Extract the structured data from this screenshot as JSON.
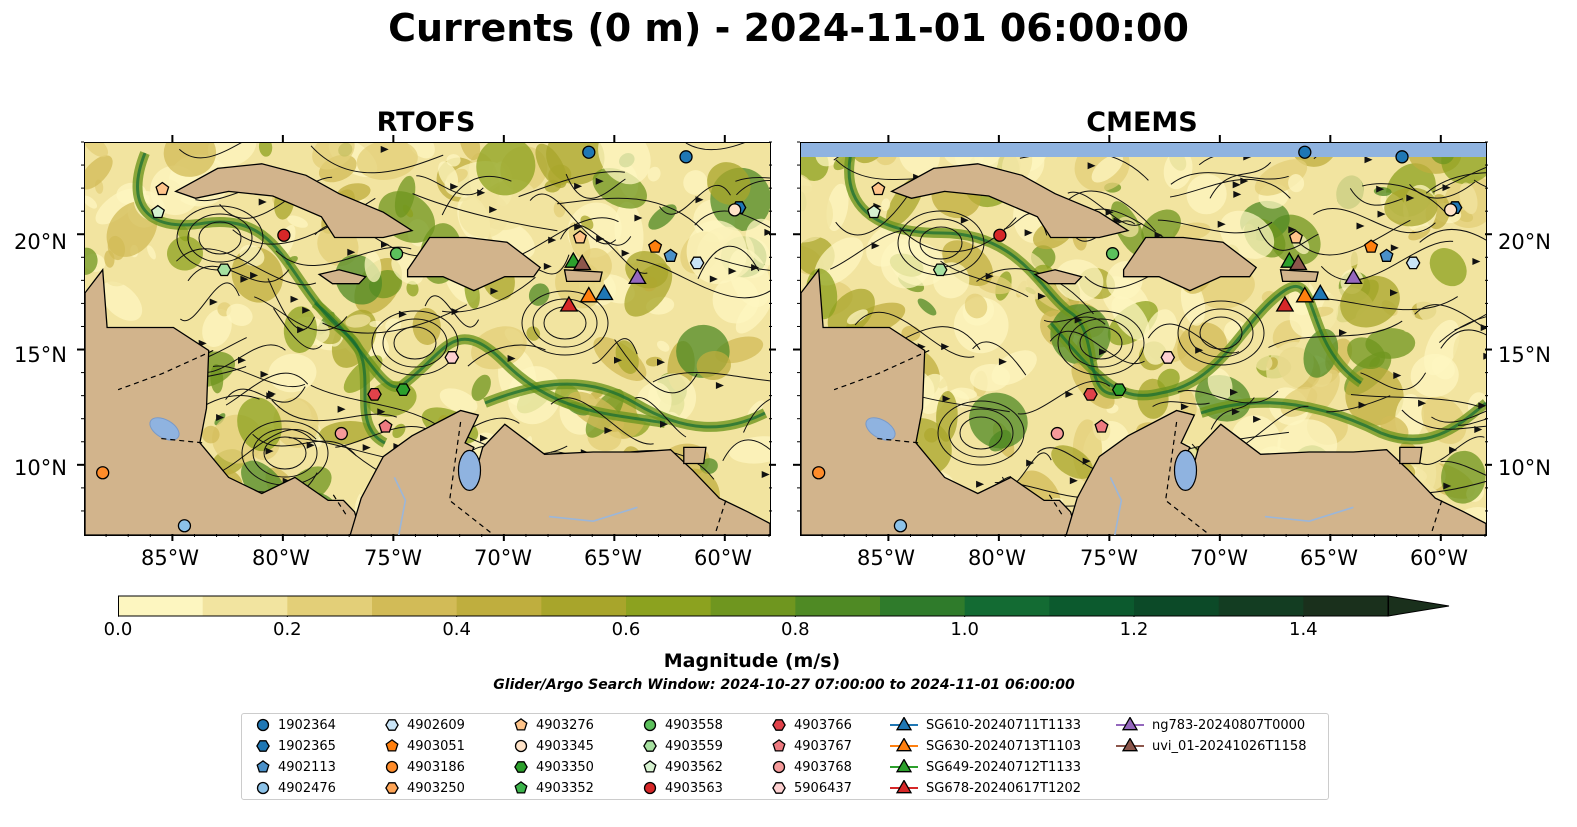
{
  "figure": {
    "title": "Currents (0 m) - 2024-11-01 06:00:00",
    "panels": [
      {
        "title": "RTOFS",
        "lat_labels_side": "left"
      },
      {
        "title": "CMEMS",
        "lat_labels_side": "right"
      }
    ],
    "lon_labels": [
      "85°W",
      "80°W",
      "75°W",
      "70°W",
      "65°W",
      "60°W"
    ],
    "lat_labels": [
      "20°N",
      "15°N",
      "10°N"
    ],
    "extent": {
      "lon": [
        -89,
        -58
      ],
      "lat": [
        7,
        24
      ]
    },
    "colors": {
      "land": "#d2b48c",
      "water_fill": "#8fb3e0",
      "missing": "#8fb3e0"
    }
  },
  "colorbar": {
    "label": "Magnitude (m/s)",
    "ticks": [
      "0.0",
      "0.2",
      "0.4",
      "0.6",
      "0.8",
      "1.0",
      "1.2",
      "1.4"
    ],
    "range": [
      0,
      1.5
    ],
    "extend": "max",
    "colors": [
      "#fdf6c0",
      "#f2e4a0",
      "#e3cf78",
      "#d2bb57",
      "#bfae3e",
      "#a8a52b",
      "#8ca21f",
      "#6f961f",
      "#4f8a24",
      "#2f7b2b",
      "#136b33",
      "#0c5a2e",
      "#0c4a28",
      "#133d22",
      "#1a301c"
    ]
  },
  "search_window": "Glider/Argo Search Window: 2024-10-27 07:00:00 to 2024-11-01 06:00:00",
  "legend": [
    {
      "label": "1902364",
      "marker": "circle",
      "color": "#1f77b4"
    },
    {
      "label": "1902365",
      "marker": "hexagon",
      "color": "#1f77b4"
    },
    {
      "label": "4902113",
      "marker": "pentagon",
      "color": "#4a90c8"
    },
    {
      "label": "4902476",
      "marker": "circle",
      "color": "#8cc2e8"
    },
    {
      "label": "4902609",
      "marker": "hexagon",
      "color": "#c9e4f6"
    },
    {
      "label": "4903051",
      "marker": "pentagon",
      "color": "#ff7f0e"
    },
    {
      "label": "4903186",
      "marker": "circle",
      "color": "#ff8c2a"
    },
    {
      "label": "4903250",
      "marker": "hexagon",
      "color": "#ffa556"
    },
    {
      "label": "4903276",
      "marker": "pentagon",
      "color": "#ffc48a"
    },
    {
      "label": "4903345",
      "marker": "circle",
      "color": "#ffe3c8"
    },
    {
      "label": "4903350",
      "marker": "hexagon",
      "color": "#2ca02c"
    },
    {
      "label": "4903352",
      "marker": "pentagon",
      "color": "#3cb44b"
    },
    {
      "label": "4903558",
      "marker": "circle",
      "color": "#5cc05c"
    },
    {
      "label": "4903559",
      "marker": "hexagon",
      "color": "#a6e0a0"
    },
    {
      "label": "4903562",
      "marker": "pentagon",
      "color": "#d6f2d0"
    },
    {
      "label": "4903563",
      "marker": "circle",
      "color": "#d62728"
    },
    {
      "label": "4903766",
      "marker": "hexagon",
      "color": "#e0424a"
    },
    {
      "label": "4903767",
      "marker": "pentagon",
      "color": "#ee7a80"
    },
    {
      "label": "4903768",
      "marker": "circle",
      "color": "#f59a9a"
    },
    {
      "label": "5906437",
      "marker": "hexagon",
      "color": "#fdd0d0"
    },
    {
      "label": "SG610-20240711T1133",
      "marker": "triangle",
      "color": "#1f77b4"
    },
    {
      "label": "SG630-20240713T1103",
      "marker": "triangle",
      "color": "#ff7f0e"
    },
    {
      "label": "SG649-20240712T1133",
      "marker": "triangle",
      "color": "#2ca02c"
    },
    {
      "label": "SG678-20240617T1202",
      "marker": "triangle",
      "color": "#d62728"
    },
    {
      "label": "ng783-20240807T0000",
      "marker": "triangle",
      "color": "#9467bd"
    },
    {
      "label": "uvi_01-20241026T1158",
      "marker": "triangle",
      "color": "#8c564b"
    }
  ],
  "markers": [
    {
      "id": "1902364",
      "lon": -66.2,
      "lat": 23.6
    },
    {
      "id": "1902364",
      "lon": -61.8,
      "lat": 23.4
    },
    {
      "id": "1902365",
      "lon": -59.4,
      "lat": 21.2
    },
    {
      "id": "4902113",
      "lon": -62.5,
      "lat": 19.1
    },
    {
      "id": "4902476",
      "lon": -84.5,
      "lat": 7.4
    },
    {
      "id": "4902609",
      "lon": -61.3,
      "lat": 18.8
    },
    {
      "id": "4903051",
      "lon": -63.2,
      "lat": 19.5
    },
    {
      "id": "4903186",
      "lon": -88.2,
      "lat": 9.7
    },
    {
      "id": "4903276",
      "lon": -66.6,
      "lat": 19.9
    },
    {
      "id": "4903276",
      "lon": -85.5,
      "lat": 22.0
    },
    {
      "id": "4903345",
      "lon": -59.6,
      "lat": 21.1
    },
    {
      "id": "4903350",
      "lon": -74.6,
      "lat": 13.3
    },
    {
      "id": "4903559",
      "lon": -82.7,
      "lat": 18.5
    },
    {
      "id": "4903562",
      "lon": -85.7,
      "lat": 21.0
    },
    {
      "id": "4903558",
      "lon": -74.9,
      "lat": 19.2
    },
    {
      "id": "4903563",
      "lon": -80.0,
      "lat": 20.0
    },
    {
      "id": "4903766",
      "lon": -75.9,
      "lat": 13.1
    },
    {
      "id": "4903767",
      "lon": -75.4,
      "lat": 11.7
    },
    {
      "id": "4903768",
      "lon": -77.4,
      "lat": 11.4
    },
    {
      "id": "5906437",
      "lon": -72.4,
      "lat": 14.7
    },
    {
      "id": "SG610-20240711T1133",
      "lon": -65.5,
      "lat": 17.5
    },
    {
      "id": "SG630-20240713T1103",
      "lon": -66.2,
      "lat": 17.4
    },
    {
      "id": "SG649-20240712T1133",
      "lon": -66.9,
      "lat": 18.9
    },
    {
      "id": "SG678-20240617T1202",
      "lon": -67.1,
      "lat": 17.0
    },
    {
      "id": "ng783-20240807T0000",
      "lon": -64.0,
      "lat": 18.2
    },
    {
      "id": "uvi_01-20241026T1158",
      "lon": -66.5,
      "lat": 18.8
    }
  ]
}
